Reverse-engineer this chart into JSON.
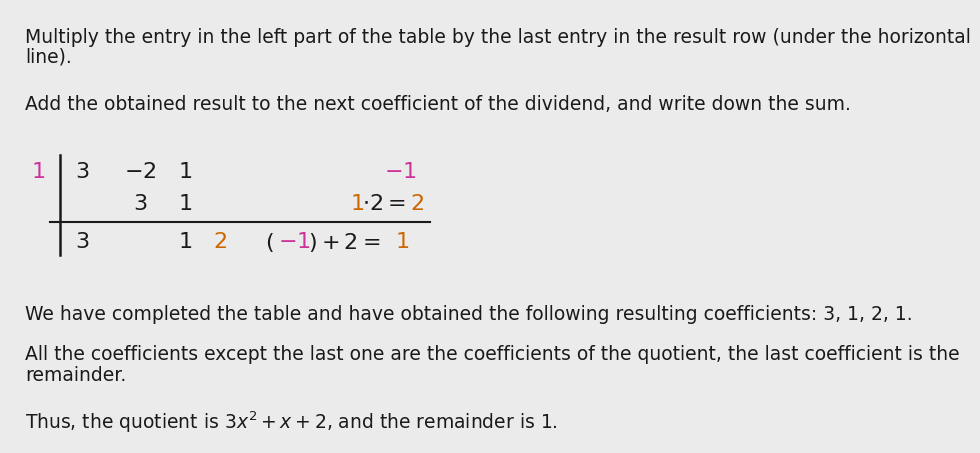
{
  "bg_color": "#ebebeb",
  "text_color": "#1a1a1a",
  "pink_color": "#cc3399",
  "orange_color": "#cc6600",
  "font_size_body": 13.5,
  "font_size_math": 16,
  "para1_line1": "Multiply the entry in the left part of the table by the last entry in the result row (under the horizontal",
  "para1_line2": "line).",
  "para2": "Add the obtained result to the next coefficient of the dividend, and write down the sum.",
  "para3": "We have completed the table and have obtained the following resulting coefficients: 3, 1, 2, 1.",
  "para4_line1": "All the coefficients except the last one are the coefficients of the quotient, the last coefficient is the",
  "para4_line2": "remainder.",
  "para5": "Thus, the quotient is $3x^2 + x + 2$, and the remainder is 1."
}
